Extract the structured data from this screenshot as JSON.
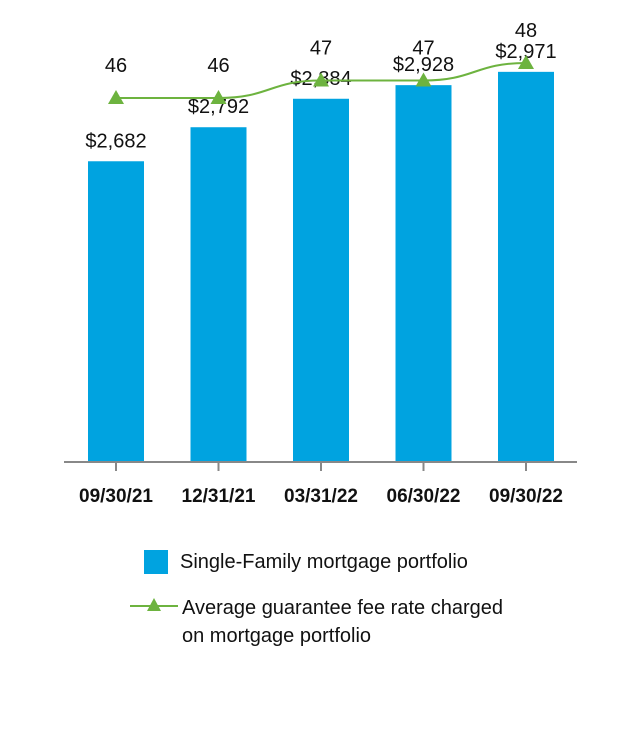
{
  "chart_data": {
    "type": "bar",
    "categories": [
      "09/30/21",
      "12/31/21",
      "03/31/22",
      "06/30/22",
      "09/30/22"
    ],
    "series": [
      {
        "name": "Single-Family mortgage portfolio",
        "type": "bar",
        "values": [
          2682,
          2792,
          2884,
          2928,
          2971
        ],
        "labels": [
          "$2,682",
          "$2,792",
          "$2,884",
          "$2,928",
          "$2,971"
        ],
        "color": "#00A3E0"
      },
      {
        "name": "Average guarantee fee rate charged on mortgage portfolio",
        "type": "line",
        "values": [
          46,
          46,
          47,
          47,
          48
        ],
        "labels": [
          "46",
          "46",
          "47",
          "47",
          "48"
        ],
        "color": "#6DB33F",
        "marker": "triangle"
      }
    ],
    "bar_ylim": [
      0,
      3000
    ],
    "line_ylim": [
      42,
      50
    ],
    "grid": false,
    "legend_position": "bottom"
  },
  "legend": {
    "bar_label": "Single-Family mortgage portfolio",
    "line_label": "Average guarantee fee rate charged on mortgage portfolio",
    "bar_icon": "square-swatch-icon",
    "line_icon": "triangle-line-icon"
  }
}
